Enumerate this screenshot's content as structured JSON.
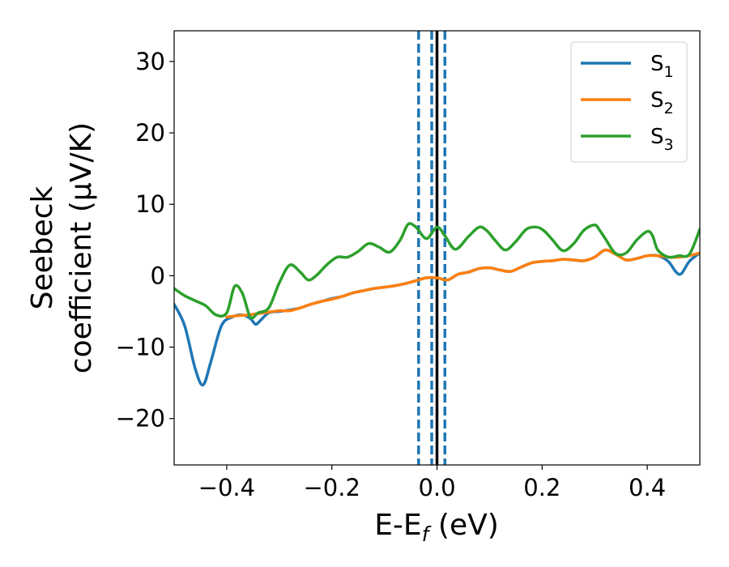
{
  "chart_data": {
    "type": "line",
    "xlabel_main": "E-E",
    "xlabel_sub": "f",
    "xlabel_unit": " (eV)",
    "ylabel_line1": "Seebeck",
    "ylabel_line2": "coefficient  (μV/K)",
    "xlim": [
      -0.5,
      0.5
    ],
    "ylim": [
      -26.5,
      34.3
    ],
    "xticks": [
      -0.4,
      -0.2,
      0.0,
      0.2,
      0.4
    ],
    "xtick_labels": [
      "−0.4",
      "−0.2",
      "0.0",
      "0.2",
      "0.4"
    ],
    "yticks": [
      -20,
      -10,
      0,
      10,
      20,
      30
    ],
    "ytick_labels": [
      "−20",
      "−10",
      "0",
      "10",
      "20",
      "30"
    ],
    "vlines": [
      {
        "x": 0.0,
        "style": "solid",
        "color": "#000000"
      },
      {
        "x": -0.035,
        "style": "dashed",
        "color": "#1f77b4"
      },
      {
        "x": -0.01,
        "style": "dashed",
        "color": "#1f77b4"
      },
      {
        "x": 0.015,
        "style": "dashed",
        "color": "#1f77b4"
      }
    ],
    "legend_position": "top-right",
    "series": [
      {
        "name": "S",
        "sub": "1",
        "color": "#1f77b4",
        "x": [
          -0.5,
          -0.48,
          -0.46,
          -0.445,
          -0.43,
          -0.41,
          -0.39,
          -0.37,
          -0.355,
          -0.345,
          -0.335,
          -0.32,
          -0.3,
          -0.28,
          -0.26,
          -0.24,
          -0.22,
          -0.2,
          -0.18,
          -0.16,
          -0.14,
          -0.12,
          -0.1,
          -0.08,
          -0.06,
          -0.04,
          -0.02,
          0.0,
          0.02,
          0.04,
          0.06,
          0.08,
          0.1,
          0.12,
          0.14,
          0.16,
          0.18,
          0.2,
          0.22,
          0.24,
          0.26,
          0.28,
          0.3,
          0.32,
          0.34,
          0.36,
          0.38,
          0.4,
          0.42,
          0.44,
          0.455,
          0.465,
          0.48,
          0.5
        ],
        "y": [
          -4,
          -7,
          -13,
          -15.3,
          -12,
          -7,
          -5.8,
          -5.5,
          -6,
          -6.8,
          -6.2,
          -5.2,
          -5,
          -4.8,
          -4.5,
          -4,
          -3.6,
          -3.2,
          -2.9,
          -2.4,
          -2.1,
          -1.8,
          -1.6,
          -1.4,
          -1.1,
          -0.7,
          -0.3,
          -0.3,
          -0.6,
          0.2,
          0.5,
          1,
          1.1,
          0.8,
          0.6,
          1.2,
          1.8,
          2.0,
          2.1,
          2.3,
          2.2,
          2.1,
          2.6,
          3.6,
          3.0,
          2.2,
          2.4,
          2.8,
          2.8,
          2.0,
          0.5,
          0.3,
          2.0,
          3.2
        ]
      },
      {
        "name": "S",
        "sub": "2",
        "color": "#ff7f0e",
        "x": [
          -0.4,
          -0.38,
          -0.36,
          -0.34,
          -0.32,
          -0.3,
          -0.28,
          -0.26,
          -0.24,
          -0.22,
          -0.2,
          -0.18,
          -0.16,
          -0.14,
          -0.12,
          -0.1,
          -0.08,
          -0.06,
          -0.04,
          -0.02,
          0.0,
          0.02,
          0.04,
          0.06,
          0.08,
          0.1,
          0.12,
          0.14,
          0.16,
          0.18,
          0.2,
          0.22,
          0.24,
          0.26,
          0.28,
          0.3,
          0.32,
          0.34,
          0.36,
          0.38,
          0.4,
          0.42,
          0.44,
          0.46,
          0.48,
          0.5
        ],
        "y": [
          -5.8,
          -5.6,
          -5.5,
          -5.3,
          -5.1,
          -4.9,
          -4.9,
          -4.5,
          -4.0,
          -3.6,
          -3.3,
          -2.9,
          -2.4,
          -2.1,
          -1.8,
          -1.6,
          -1.4,
          -1.1,
          -0.7,
          -0.3,
          -0.3,
          -0.6,
          0.2,
          0.5,
          1,
          1.1,
          0.8,
          0.6,
          1.2,
          1.8,
          2.0,
          2.1,
          2.3,
          2.2,
          2.1,
          2.6,
          3.6,
          3.0,
          2.2,
          2.4,
          2.8,
          2.8,
          2.6,
          2.6,
          2.8,
          3.2
        ]
      },
      {
        "name": "S",
        "sub": "3",
        "color": "#2ca02c",
        "x": [
          -0.5,
          -0.48,
          -0.46,
          -0.44,
          -0.42,
          -0.4,
          -0.385,
          -0.37,
          -0.355,
          -0.34,
          -0.32,
          -0.3,
          -0.28,
          -0.26,
          -0.245,
          -0.23,
          -0.21,
          -0.19,
          -0.17,
          -0.15,
          -0.13,
          -0.11,
          -0.09,
          -0.07,
          -0.055,
          -0.04,
          -0.02,
          0.0,
          0.015,
          0.035,
          0.06,
          0.08,
          0.095,
          0.11,
          0.13,
          0.15,
          0.17,
          0.19,
          0.205,
          0.22,
          0.24,
          0.26,
          0.28,
          0.3,
          0.31,
          0.32,
          0.34,
          0.36,
          0.38,
          0.4,
          0.41,
          0.42,
          0.44,
          0.46,
          0.48,
          0.5
        ],
        "y": [
          -1.8,
          -2.8,
          -3.5,
          -4.2,
          -5.5,
          -5.2,
          -1.5,
          -2.5,
          -5.8,
          -5.2,
          -4.5,
          -1,
          1.5,
          0.5,
          -0.6,
          0,
          1.5,
          2.6,
          2.6,
          3.4,
          4.5,
          4.0,
          3.3,
          5.0,
          7.2,
          6.8,
          5.2,
          6.8,
          5.6,
          3.7,
          5.5,
          6.8,
          6.3,
          5.0,
          3.6,
          4.8,
          6.5,
          6.8,
          6.2,
          5.0,
          3.5,
          4.5,
          6.4,
          7.1,
          6.3,
          5.2,
          3.1,
          3.2,
          5.0,
          6.2,
          5.6,
          3.6,
          2.6,
          2.8,
          3.0,
          6.5
        ]
      }
    ]
  }
}
